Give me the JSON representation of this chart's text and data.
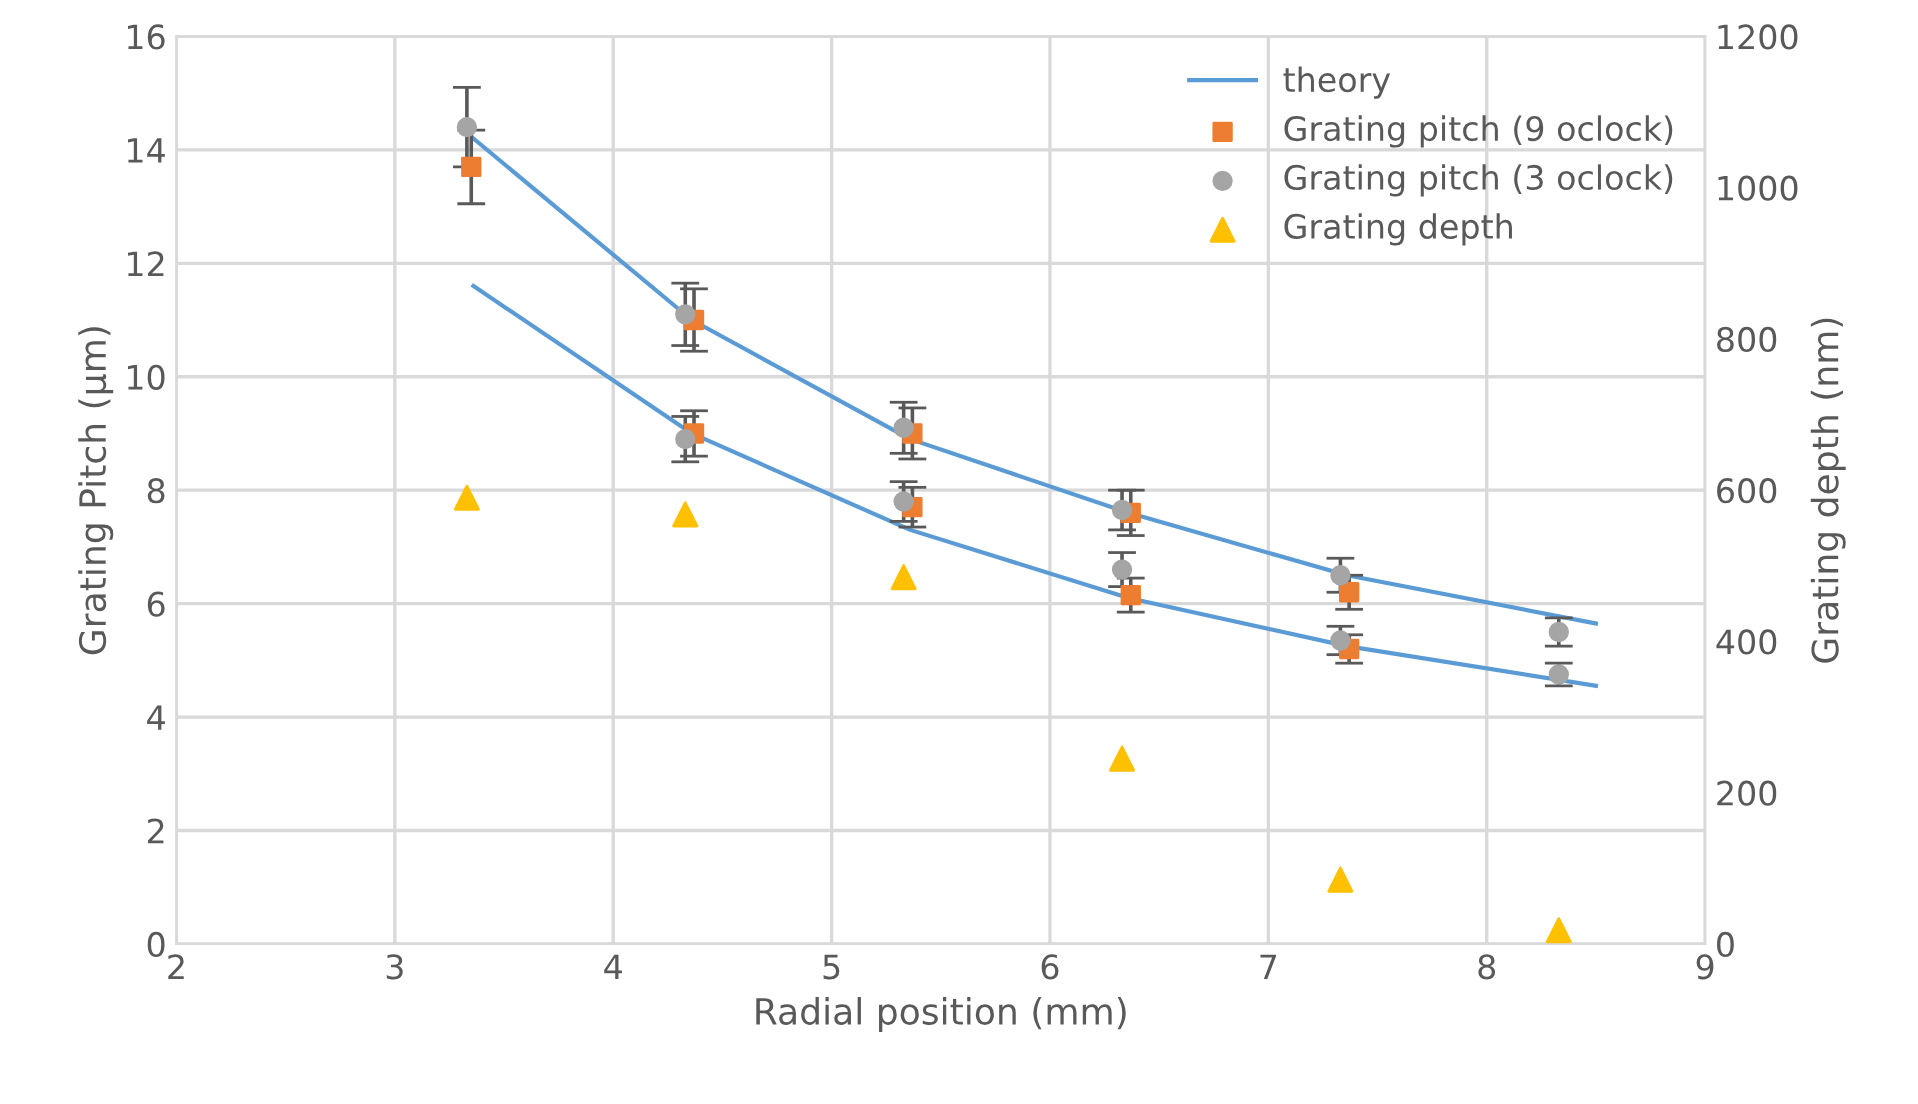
{
  "chart_data": {
    "type": "scatter",
    "xlabel": "Radial position (mm)",
    "ylabel": "Grating Pitch (µm)",
    "y2label": "Grating depth (nm)",
    "xlim": [
      2,
      9
    ],
    "xticks": [
      2,
      3,
      4,
      5,
      6,
      7,
      8,
      9
    ],
    "ylim": [
      0,
      16
    ],
    "yticks": [
      0,
      2,
      4,
      6,
      8,
      10,
      12,
      14,
      16
    ],
    "y2lim": [
      0,
      1200
    ],
    "y2ticks": [
      0,
      200,
      400,
      600,
      800,
      1000,
      1200
    ],
    "grid": true,
    "legend": "top right",
    "series": [
      {
        "name": "theory",
        "type": "line",
        "color": "#5b9bd5",
        "marker": "none",
        "x": [
          3.36,
          4.36,
          5.36,
          6.36,
          7.36,
          8.5
        ],
        "values": [
          14.2,
          11.0,
          8.9,
          7.6,
          6.5,
          5.65
        ]
      },
      {
        "type": "line",
        "color": "#5b9bd5",
        "marker": "none",
        "x": [
          3.36,
          4.36,
          5.36,
          6.36,
          7.36,
          8.5
        ],
        "values": [
          11.6,
          9.0,
          7.3,
          6.1,
          5.25,
          4.55
        ]
      },
      {
        "name": "Grating pitch (9 oclock)",
        "color": "#ed7d31",
        "marker": "square",
        "x": [
          3.35,
          4.37,
          4.37,
          5.37,
          5.37,
          6.37,
          6.37,
          7.37,
          7.37
        ],
        "values": [
          13.7,
          11.0,
          9.0,
          9.0,
          7.7,
          7.6,
          6.15,
          6.2,
          5.2
        ],
        "errors": [
          0.65,
          0.55,
          0.4,
          0.45,
          0.35,
          0.4,
          0.3,
          0.3,
          0.25
        ]
      },
      {
        "name": "Grating pitch (3 oclock)",
        "color": "#a5a5a5",
        "marker": "circle",
        "x": [
          3.33,
          4.33,
          4.33,
          5.33,
          5.33,
          6.33,
          6.33,
          7.33,
          7.33,
          8.33,
          8.33
        ],
        "values": [
          14.4,
          11.1,
          8.9,
          9.1,
          7.8,
          7.65,
          6.6,
          6.5,
          5.35,
          5.5,
          4.75
        ],
        "errors": [
          0.7,
          0.55,
          0.4,
          0.45,
          0.35,
          0.35,
          0.3,
          0.3,
          0.25,
          0.25,
          0.2
        ]
      },
      {
        "name": "Grating depth",
        "axis": "y2",
        "color": "#ffc000",
        "marker": "triangle",
        "x": [
          3.33,
          4.33,
          5.33,
          6.33,
          7.33,
          8.33
        ],
        "values": [
          590,
          568,
          485,
          245,
          85,
          18
        ]
      }
    ]
  }
}
